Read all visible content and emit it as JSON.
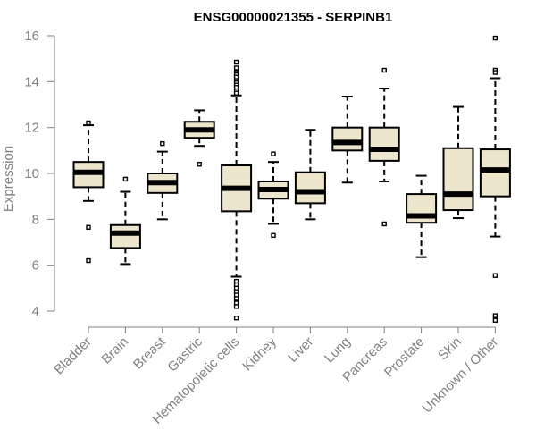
{
  "chart_data": {
    "type": "box",
    "title": "ENSG00000021355 - SERPINB1",
    "ylabel": "Expression",
    "xlabel": "",
    "ylim": [
      3.6,
      16.1
    ],
    "yticks": [
      4,
      6,
      8,
      10,
      12,
      14,
      16
    ],
    "grid": false,
    "legend": "none",
    "colors": {
      "box_fill": "#ede6cc",
      "box_stroke": "#000000",
      "median": "#000000",
      "axis": "#808080",
      "title": "#000000"
    },
    "categories": [
      "Bladder",
      "Brain",
      "Breast",
      "Gastric",
      "Hematopoietic cells",
      "Kidney",
      "Liver",
      "Lung",
      "Pancreas",
      "Prostate",
      "Skin",
      "Unknown / Other"
    ],
    "boxes": [
      {
        "category": "Bladder",
        "whisker_low": 8.8,
        "q1": 9.4,
        "median": 10.05,
        "q3": 10.5,
        "whisker_high": 12.1,
        "outliers": [
          12.2,
          7.65,
          6.2
        ]
      },
      {
        "category": "Brain",
        "whisker_low": 6.05,
        "q1": 6.75,
        "median": 7.4,
        "q3": 7.75,
        "whisker_high": 9.2,
        "outliers": [
          9.75
        ]
      },
      {
        "category": "Breast",
        "whisker_low": 8.0,
        "q1": 9.15,
        "median": 9.6,
        "q3": 10.0,
        "whisker_high": 10.95,
        "outliers": [
          11.3
        ]
      },
      {
        "category": "Gastric",
        "whisker_low": 11.2,
        "q1": 11.55,
        "median": 11.9,
        "q3": 12.25,
        "whisker_high": 12.75,
        "outliers": [
          10.4
        ]
      },
      {
        "category": "Hematopoietic cells",
        "whisker_low": 5.5,
        "q1": 8.35,
        "median": 9.35,
        "q3": 10.35,
        "whisker_high": 13.4,
        "outliers": [
          14.85,
          14.6,
          14.4,
          14.3,
          14.2,
          14.05,
          13.95,
          13.85,
          13.75,
          13.6,
          13.5,
          5.3,
          5.15,
          5.0,
          4.85,
          4.7,
          4.55,
          4.35,
          4.2,
          3.7
        ]
      },
      {
        "category": "Kidney",
        "whisker_low": 7.8,
        "q1": 8.9,
        "median": 9.3,
        "q3": 9.65,
        "whisker_high": 10.5,
        "outliers": [
          10.85,
          7.3
        ]
      },
      {
        "category": "Liver",
        "whisker_low": 8.0,
        "q1": 8.7,
        "median": 9.2,
        "q3": 10.05,
        "whisker_high": 11.9,
        "outliers": []
      },
      {
        "category": "Lung",
        "whisker_low": 9.6,
        "q1": 11.0,
        "median": 11.35,
        "q3": 12.0,
        "whisker_high": 13.35,
        "outliers": []
      },
      {
        "category": "Pancreas",
        "whisker_low": 9.65,
        "q1": 10.55,
        "median": 11.05,
        "q3": 12.0,
        "whisker_high": 13.7,
        "outliers": [
          14.5,
          7.8
        ]
      },
      {
        "category": "Prostate",
        "whisker_low": 6.35,
        "q1": 7.85,
        "median": 8.15,
        "q3": 9.1,
        "whisker_high": 9.9,
        "outliers": []
      },
      {
        "category": "Skin",
        "whisker_low": 8.05,
        "q1": 8.4,
        "median": 9.1,
        "q3": 11.1,
        "whisker_high": 12.9,
        "outliers": []
      },
      {
        "category": "Unknown / Other",
        "whisker_low": 7.25,
        "q1": 9.0,
        "median": 10.15,
        "q3": 11.05,
        "whisker_high": 14.15,
        "outliers": [
          15.9,
          14.5,
          14.4,
          5.55,
          3.8,
          3.6
        ]
      }
    ]
  }
}
